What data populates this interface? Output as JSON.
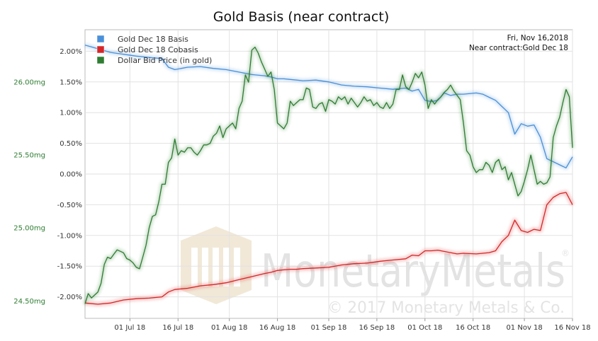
{
  "chart_data": {
    "type": "line",
    "title": "Gold Basis (near contract)",
    "date_label": "Fri, Nov 16,2018",
    "contract_label": "Near contract:Gold Dec 18",
    "watermark": {
      "brand": "MonetaryMetals",
      "copyright": "© 2017 Monetary Metals & Co.",
      "registered": "®"
    },
    "legend_position": "top-left",
    "grid": true,
    "x_ticks": [
      "01 Jul 18",
      "16 Jul 18",
      "01 Aug 18",
      "16 Aug 18",
      "01 Sep 18",
      "16 Sep 18",
      "01 Oct 18",
      "16 Oct 18",
      "01 Nov 18",
      "16 Nov 18"
    ],
    "x_tick_days": [
      14,
      29,
      45,
      60,
      76,
      91,
      106,
      121,
      137,
      152
    ],
    "xlim": [
      0,
      152
    ],
    "x_day0": "17 Jun 18",
    "y_right": {
      "ticks": [
        "2.00%",
        "1.50%",
        "1.00%",
        "0.50%",
        "0.00%",
        "-0.50%",
        "-1.00%",
        "-1.50%",
        "-2.00%"
      ],
      "ylim": [
        -2.35,
        2.35
      ]
    },
    "y_left": {
      "ticks": [
        "26.00mg",
        "25.50mg",
        "25.00mg",
        "24.50mg"
      ],
      "ylim": [
        24.38,
        26.36
      ]
    },
    "series": [
      {
        "name": "Gold Dec 18 Basis",
        "color": "#4a90d9",
        "axis": "right",
        "x": [
          0,
          4,
          8,
          12,
          16,
          20,
          24,
          26,
          28,
          30,
          32,
          36,
          40,
          44,
          48,
          52,
          56,
          58,
          60,
          62,
          64,
          66,
          68,
          72,
          76,
          80,
          84,
          88,
          92,
          96,
          100,
          102,
          104,
          106,
          108,
          110,
          112,
          114,
          116,
          118,
          122,
          124,
          126,
          128,
          130,
          132,
          134,
          136,
          138,
          140,
          142,
          144,
          146,
          148,
          150,
          152
        ],
        "values": [
          2.1,
          2.04,
          1.98,
          1.95,
          1.92,
          1.9,
          1.88,
          1.74,
          1.7,
          1.72,
          1.74,
          1.75,
          1.72,
          1.7,
          1.66,
          1.62,
          1.6,
          1.58,
          1.55,
          1.55,
          1.54,
          1.53,
          1.52,
          1.53,
          1.5,
          1.45,
          1.43,
          1.42,
          1.4,
          1.38,
          1.4,
          1.35,
          1.38,
          1.2,
          1.18,
          1.2,
          1.32,
          1.28,
          1.3,
          1.3,
          1.32,
          1.3,
          1.25,
          1.2,
          1.1,
          1.0,
          0.65,
          0.82,
          0.78,
          0.8,
          0.6,
          0.25,
          0.2,
          0.15,
          0.1,
          0.28
        ]
      },
      {
        "name": "Gold Dec 18 Cobasis",
        "color": "#d62728",
        "axis": "right",
        "x": [
          0,
          4,
          8,
          12,
          16,
          20,
          24,
          26,
          28,
          30,
          32,
          36,
          40,
          44,
          48,
          52,
          56,
          58,
          60,
          62,
          64,
          66,
          68,
          72,
          76,
          80,
          84,
          88,
          92,
          96,
          100,
          102,
          104,
          106,
          108,
          110,
          112,
          114,
          116,
          118,
          122,
          124,
          126,
          128,
          130,
          132,
          134,
          136,
          138,
          140,
          142,
          144,
          146,
          148,
          150,
          152
        ],
        "values": [
          -2.1,
          -2.12,
          -2.1,
          -2.05,
          -2.03,
          -2.02,
          -2.0,
          -1.92,
          -1.88,
          -1.87,
          -1.86,
          -1.82,
          -1.8,
          -1.77,
          -1.72,
          -1.67,
          -1.62,
          -1.6,
          -1.57,
          -1.56,
          -1.55,
          -1.55,
          -1.54,
          -1.53,
          -1.52,
          -1.48,
          -1.46,
          -1.45,
          -1.42,
          -1.4,
          -1.38,
          -1.32,
          -1.33,
          -1.25,
          -1.25,
          -1.24,
          -1.26,
          -1.28,
          -1.3,
          -1.29,
          -1.3,
          -1.29,
          -1.28,
          -1.25,
          -1.1,
          -1.0,
          -0.75,
          -0.92,
          -0.95,
          -0.9,
          -0.92,
          -0.5,
          -0.38,
          -0.32,
          -0.3,
          -0.5
        ]
      },
      {
        "name": "Dollar Bid Price (in gold)",
        "color": "#2e7d32",
        "axis": "left",
        "x": [
          0,
          1,
          2,
          3,
          4,
          5,
          6,
          7,
          8,
          9,
          10,
          11,
          12,
          13,
          14,
          15,
          16,
          17,
          18,
          19,
          20,
          21,
          22,
          23,
          24,
          25,
          26,
          27,
          28,
          29,
          30,
          31,
          32,
          33,
          34,
          35,
          36,
          37,
          38,
          39,
          40,
          41,
          42,
          43,
          44,
          45,
          46,
          47,
          48,
          49,
          50,
          51,
          52,
          53,
          54,
          55,
          56,
          57,
          58,
          59,
          60,
          61,
          62,
          63,
          64,
          65,
          66,
          67,
          68,
          69,
          70,
          71,
          72,
          73,
          74,
          75,
          76,
          77,
          78,
          79,
          80,
          81,
          82,
          83,
          84,
          85,
          86,
          87,
          88,
          89,
          90,
          91,
          92,
          93,
          94,
          95,
          96,
          97,
          98,
          99,
          100,
          101,
          102,
          103,
          104,
          105,
          106,
          107,
          108,
          109,
          110,
          111,
          112,
          113,
          114,
          115,
          116,
          117,
          118,
          119,
          120,
          121,
          122,
          123,
          124,
          125,
          126,
          127,
          128,
          129,
          130,
          131,
          132,
          133,
          134,
          135,
          136,
          137,
          138,
          139,
          140,
          141,
          142,
          143,
          144,
          145,
          146,
          147,
          148,
          149,
          150,
          151,
          152
        ],
        "values": [
          24.48,
          24.55,
          24.52,
          24.54,
          24.56,
          24.62,
          24.75,
          24.8,
          24.79,
          24.82,
          24.85,
          24.84,
          24.83,
          24.79,
          24.78,
          24.76,
          24.73,
          24.72,
          24.8,
          24.88,
          25.0,
          25.08,
          25.09,
          25.18,
          25.3,
          25.3,
          25.45,
          25.48,
          25.61,
          25.5,
          25.53,
          25.52,
          25.55,
          25.55,
          25.52,
          25.5,
          25.53,
          25.57,
          25.57,
          25.58,
          25.63,
          25.65,
          25.7,
          25.62,
          25.68,
          25.7,
          25.72,
          25.68,
          25.82,
          25.87,
          26.05,
          26.0,
          26.22,
          26.24,
          26.2,
          26.14,
          26.09,
          26.04,
          26.07,
          25.95,
          25.72,
          25.7,
          25.68,
          25.72,
          25.87,
          25.84,
          25.86,
          25.88,
          25.88,
          25.96,
          25.95,
          25.83,
          25.82,
          25.85,
          25.86,
          25.8,
          25.88,
          25.87,
          25.85,
          25.9,
          25.88,
          25.9,
          25.85,
          25.89,
          25.86,
          25.83,
          25.86,
          25.9,
          25.87,
          25.88,
          25.84,
          25.86,
          25.83,
          25.82,
          25.86,
          25.82,
          25.85,
          25.95,
          25.95,
          26.05,
          25.97,
          25.95,
          26.0,
          26.06,
          26.03,
          26.07,
          25.98,
          25.82,
          25.88,
          25.85,
          25.88,
          25.9,
          25.93,
          25.95,
          25.98,
          25.94,
          25.91,
          25.88,
          25.72,
          25.53,
          25.5,
          25.42,
          25.38,
          25.4,
          25.4,
          25.45,
          25.43,
          25.38,
          25.45,
          25.47,
          25.4,
          25.42,
          25.33,
          25.38,
          25.3,
          25.22,
          25.25,
          25.32,
          25.4,
          25.5,
          25.4,
          25.3,
          25.32,
          25.3,
          25.31,
          25.35,
          25.62,
          25.7,
          25.76,
          25.86,
          25.95,
          25.9,
          25.55
        ]
      }
    ]
  }
}
